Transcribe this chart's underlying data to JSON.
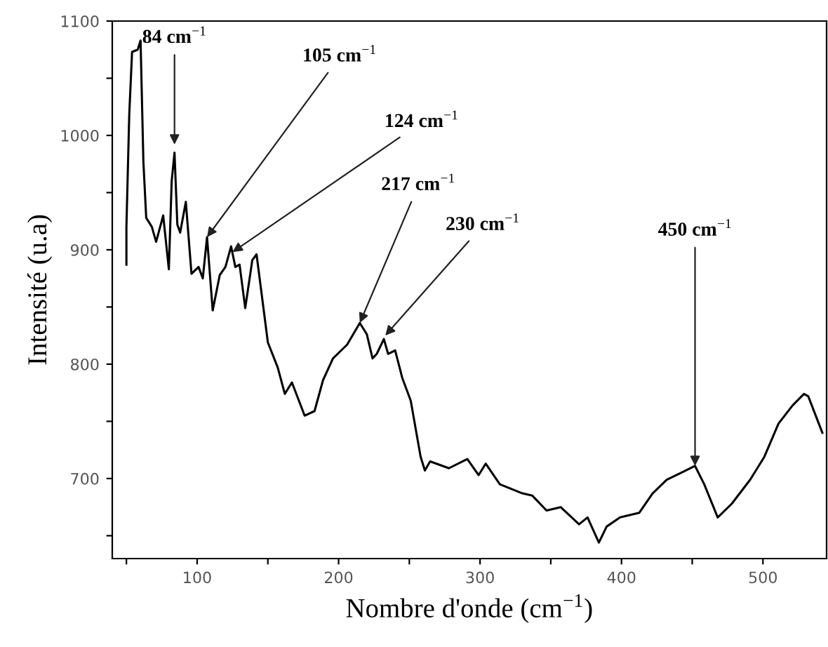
{
  "chart_data": {
    "type": "line",
    "xlabel": "Nombre d'onde (cm$^{−1}$)",
    "ylabel": "Intensité (u.a)",
    "xlim": [
      40,
      545
    ],
    "ylim": [
      630,
      1100
    ],
    "xticks": [
      {
        "value": 50,
        "label": null
      },
      100,
      {
        "value": 150,
        "label": null
      },
      200,
      {
        "value": 250,
        "label": null
      },
      300,
      {
        "value": 350,
        "label": null
      },
      400,
      {
        "value": 450,
        "label": null
      },
      500
    ],
    "yticks": [
      {
        "value": 650,
        "label": null
      },
      700,
      {
        "value": 750,
        "label": null
      },
      800,
      {
        "value": 850,
        "label": null
      },
      900,
      {
        "value": 950,
        "label": null
      },
      1000,
      {
        "value": 1050,
        "label": null
      },
      1100
    ],
    "grid": false,
    "legend": false,
    "marker": "none",
    "line_style": "solid",
    "series": [
      {
        "color": "#000000",
        "x": [
          50,
          50,
          52,
          54,
          58,
          60,
          62,
          64,
          68,
          71,
          76,
          80,
          82,
          84,
          86,
          88,
          92,
          96,
          101,
          104,
          107,
          111,
          116,
          120,
          124,
          127,
          130,
          134,
          139,
          142,
          150,
          157,
          162,
          167,
          176,
          183,
          189,
          196,
          206,
          215,
          220,
          224,
          227,
          232,
          235,
          240,
          245,
          251,
          258,
          261,
          264.7,
          278,
          291,
          299,
          304,
          314,
          330,
          337,
          347,
          357,
          370,
          376,
          384,
          389.5,
          399,
          412.5,
          422,
          432,
          442,
          452,
          458.5,
          468,
          478,
          491,
          501,
          511,
          521,
          529,
          532,
          537,
          542
        ],
        "values": [
          887,
          920,
          1018,
          1073,
          1075,
          1083,
          977,
          928,
          920,
          907,
          930,
          883,
          960,
          985,
          922,
          915,
          942,
          879,
          885,
          875,
          911,
          847,
          878,
          885,
          903,
          885,
          887,
          849,
          891,
          896,
          819,
          797,
          774,
          784,
          755,
          759,
          786,
          805,
          817,
          836,
          826,
          805,
          809,
          822,
          809,
          812,
          788,
          768,
          719,
          707,
          715,
          709,
          717,
          703,
          713,
          695,
          687,
          685,
          672,
          675,
          660,
          666,
          644,
          658,
          666,
          670,
          687,
          699,
          705,
          711,
          695,
          666,
          678,
          699,
          719,
          748,
          764,
          774,
          772,
          756,
          740
        ]
      }
    ],
    "annotations": [
      {
        "text": "84 cm$^{−1}$",
        "x": 84,
        "y": 992
      },
      {
        "text": "105 cm$^{−1}$",
        "x": 107,
        "y": 911
      },
      {
        "text": "124 cm$^{−1}$",
        "x": 125,
        "y": 898
      },
      {
        "text": "217 cm$^{−1}$",
        "x": 215,
        "y": 836
      },
      {
        "text": "230 cm$^{−1}$",
        "x": 233,
        "y": 825
      },
      {
        "text": "450 cm$^{−1}$",
        "x": 452,
        "y": 711
      }
    ]
  }
}
